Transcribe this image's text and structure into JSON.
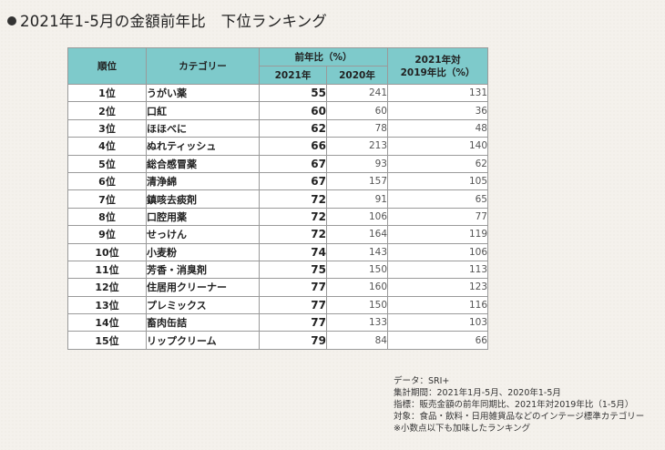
{
  "title": "2021年1-5月の金額前年比　下位ランキング",
  "table": {
    "headers": {
      "rank": "順位",
      "category": "カテゴリー",
      "yoy_group": "前年比（%）",
      "y2021": "2021年",
      "y2020": "2020年",
      "vs2019": "2021年対\n2019年比（%）"
    },
    "rows": [
      {
        "rank": "1位",
        "category": "うがい薬",
        "y2021": "55",
        "y2020": "241",
        "vs2019": "131"
      },
      {
        "rank": "2位",
        "category": "口紅",
        "y2021": "60",
        "y2020": "60",
        "vs2019": "36"
      },
      {
        "rank": "3位",
        "category": "ほほべに",
        "y2021": "62",
        "y2020": "78",
        "vs2019": "48"
      },
      {
        "rank": "4位",
        "category": "ぬれティッシュ",
        "y2021": "66",
        "y2020": "213",
        "vs2019": "140"
      },
      {
        "rank": "5位",
        "category": "総合感冒薬",
        "y2021": "67",
        "y2020": "93",
        "vs2019": "62"
      },
      {
        "rank": "6位",
        "category": "清浄綿",
        "y2021": "67",
        "y2020": "157",
        "vs2019": "105"
      },
      {
        "rank": "7位",
        "category": "鎮咳去痰剤",
        "y2021": "72",
        "y2020": "91",
        "vs2019": "65"
      },
      {
        "rank": "8位",
        "category": "口腔用薬",
        "y2021": "72",
        "y2020": "106",
        "vs2019": "77"
      },
      {
        "rank": "9位",
        "category": "せっけん",
        "y2021": "72",
        "y2020": "164",
        "vs2019": "119"
      },
      {
        "rank": "10位",
        "category": "小麦粉",
        "y2021": "74",
        "y2020": "143",
        "vs2019": "106"
      },
      {
        "rank": "11位",
        "category": "芳香・消臭剤",
        "y2021": "75",
        "y2020": "150",
        "vs2019": "113"
      },
      {
        "rank": "12位",
        "category": "住居用クリーナー",
        "y2021": "77",
        "y2020": "160",
        "vs2019": "123"
      },
      {
        "rank": "13位",
        "category": "プレミックス",
        "y2021": "77",
        "y2020": "150",
        "vs2019": "116"
      },
      {
        "rank": "14位",
        "category": "畜肉缶詰",
        "y2021": "77",
        "y2020": "133",
        "vs2019": "103"
      },
      {
        "rank": "15位",
        "category": "リップクリーム",
        "y2021": "79",
        "y2020": "84",
        "vs2019": "66"
      }
    ]
  },
  "notes": [
    "データ：SRI+",
    "集計期間：2021年1月-5月、2020年1-5月",
    "指標：販売金額の前年同期比、2021年対2019年比（1-5月）",
    "対象：食品・飲料・日用雑貨品などのインテージ標準カテゴリー",
    "※小数点以下も加味したランキング"
  ]
}
